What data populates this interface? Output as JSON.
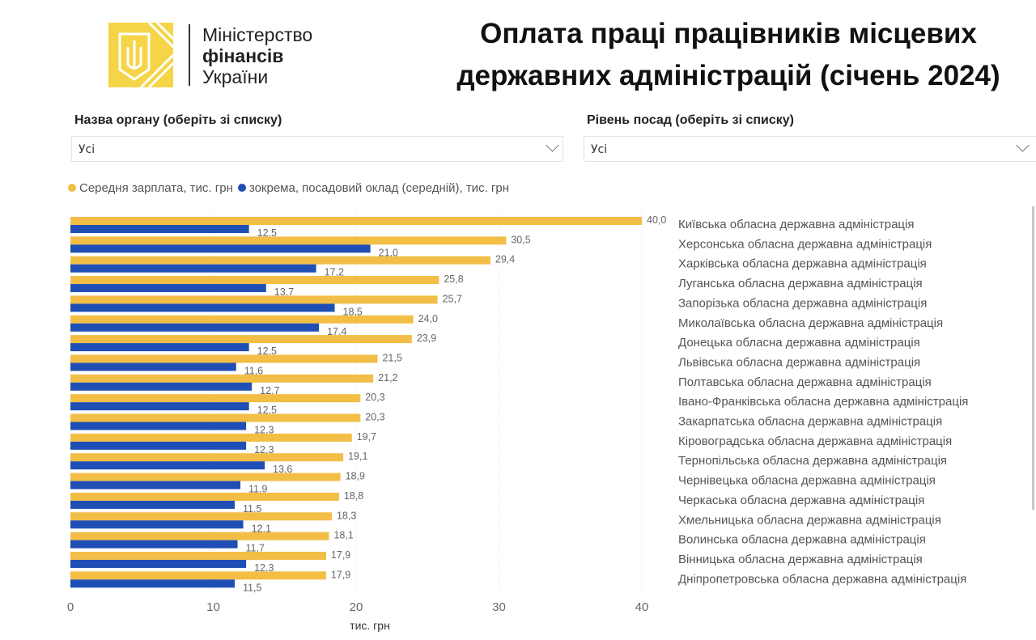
{
  "logo": {
    "line1": "Міністерство",
    "line2": "фінансів",
    "line3": "України"
  },
  "title": {
    "line1": "Оплата праці працівників місцевих",
    "line2": "державних адміністрацій (січень 2024)"
  },
  "filters": [
    {
      "label": "Назва органу (оберіть зі списку)",
      "value": "Усі"
    },
    {
      "label": "Рівень посад (оберіть зі списку)",
      "value": "Усі"
    }
  ],
  "colors": {
    "avg": "#F2BE46",
    "base": "#1F4FB4"
  },
  "chart_data": {
    "type": "bar",
    "orientation": "horizontal",
    "xlabel": "тис. грн",
    "xlim": [
      0,
      40
    ],
    "xticks": [
      "0",
      "10",
      "20",
      "30",
      "40"
    ],
    "grid": true,
    "legend": "top-left",
    "categories": [
      "Київська обласна державна адміністрація",
      "Херсонська обласна державна адміністрація",
      "Харківська обласна державна адміністрація",
      "Луганська обласна державна адміністрація",
      "Запорізька обласна державна адміністрація",
      "Миколаївська обласна державна адміністрація",
      "Донецька обласна державна адміністрація",
      "Львівська обласна державна адміністрація",
      "Полтавська обласна державна адміністрація",
      "Івано-Франківська обласна державна адміністрація",
      "Закарпатська обласна державна адміністрація",
      "Кіровоградська обласна державна адміністрація",
      "Тернопільська обласна державна адміністрація",
      "Чернівецька обласна державна адміністрація",
      "Черкаська обласна державна адміністрація",
      "Хмельницька обласна державна адміністрація",
      "Волинська обласна державна адміністрація",
      "Вінницька обласна державна адміністрація",
      "Дніпропетровська обласна державна адміністрація"
    ],
    "series": [
      {
        "name": "Середня зарплата, тис. грн",
        "values": [
          40.0,
          30.5,
          29.4,
          25.8,
          25.7,
          24.0,
          23.9,
          21.5,
          21.2,
          20.3,
          20.3,
          19.7,
          19.1,
          18.9,
          18.8,
          18.3,
          18.1,
          17.9,
          17.9
        ]
      },
      {
        "name": "зокрема, посадовий оклад (середній), тис. грн",
        "values": [
          12.5,
          21.0,
          17.2,
          13.7,
          18.5,
          17.4,
          12.5,
          11.6,
          12.7,
          12.5,
          12.3,
          12.3,
          13.6,
          11.9,
          11.5,
          12.1,
          11.7,
          12.3,
          11.5
        ]
      }
    ]
  }
}
